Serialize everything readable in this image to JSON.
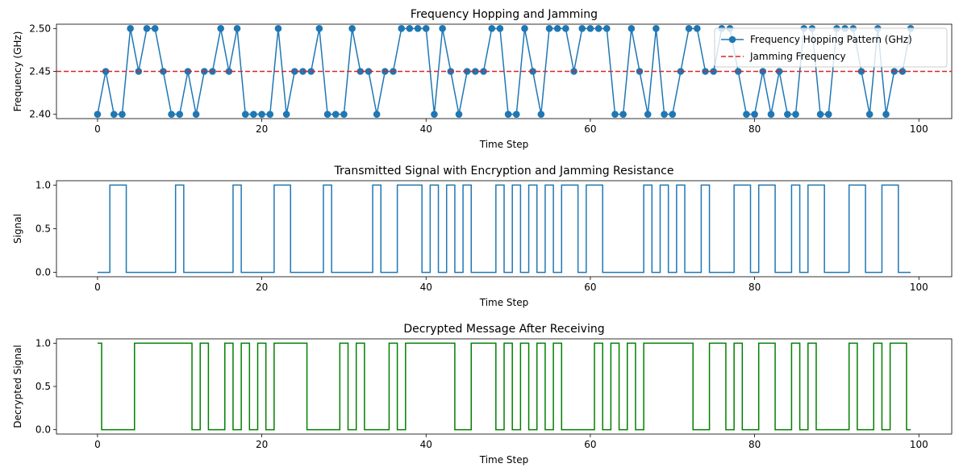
{
  "chart_data": [
    {
      "type": "line",
      "title": "Frequency Hopping and Jamming",
      "xlabel": "Time Step",
      "ylabel": "Frequency (GHz)",
      "xlim": [
        -5,
        104
      ],
      "ylim": [
        2.395,
        2.505
      ],
      "xticks": [
        0,
        20,
        40,
        60,
        80,
        100
      ],
      "yticks": [
        2.4,
        2.45,
        2.5
      ],
      "ytick_labels": [
        "2.40",
        "2.45",
        "2.50"
      ],
      "legend_position": "top-right",
      "series": [
        {
          "name": "Frequency Hopping Pattern (GHz)",
          "color": "#1f77b4",
          "marker": "circle",
          "x": [
            0,
            1,
            2,
            3,
            4,
            5,
            6,
            7,
            8,
            9,
            10,
            11,
            12,
            13,
            14,
            15,
            16,
            17,
            18,
            19,
            20,
            21,
            22,
            23,
            24,
            25,
            26,
            27,
            28,
            29,
            30,
            31,
            32,
            33,
            34,
            35,
            36,
            37,
            38,
            39,
            40,
            41,
            42,
            43,
            44,
            45,
            46,
            47,
            48,
            49,
            50,
            51,
            52,
            53,
            54,
            55,
            56,
            57,
            58,
            59,
            60,
            61,
            62,
            63,
            64,
            65,
            66,
            67,
            68,
            69,
            70,
            71,
            72,
            73,
            74,
            75,
            76,
            77,
            78,
            79,
            80,
            81,
            82,
            83,
            84,
            85,
            86,
            87,
            88,
            89,
            90,
            91,
            92,
            93,
            94,
            95,
            96,
            97,
            98,
            99
          ],
          "y": [
            2.4,
            2.45,
            2.4,
            2.4,
            2.5,
            2.45,
            2.5,
            2.5,
            2.45,
            2.4,
            2.4,
            2.45,
            2.4,
            2.45,
            2.45,
            2.5,
            2.45,
            2.5,
            2.4,
            2.4,
            2.4,
            2.4,
            2.5,
            2.4,
            2.45,
            2.45,
            2.45,
            2.5,
            2.4,
            2.4,
            2.4,
            2.5,
            2.45,
            2.45,
            2.4,
            2.45,
            2.45,
            2.5,
            2.5,
            2.5,
            2.5,
            2.4,
            2.5,
            2.45,
            2.4,
            2.45,
            2.45,
            2.45,
            2.5,
            2.5,
            2.4,
            2.4,
            2.5,
            2.45,
            2.4,
            2.5,
            2.5,
            2.5,
            2.45,
            2.5,
            2.5,
            2.5,
            2.5,
            2.4,
            2.4,
            2.5,
            2.45,
            2.4,
            2.5,
            2.4,
            2.4,
            2.45,
            2.5,
            2.5,
            2.45,
            2.45,
            2.5,
            2.5,
            2.45,
            2.4,
            2.4,
            2.45,
            2.4,
            2.45,
            2.4,
            2.4,
            2.5,
            2.5,
            2.4,
            2.4,
            2.5,
            2.5,
            2.5,
            2.45,
            2.4,
            2.5,
            2.4,
            2.45,
            2.45,
            2.5
          ]
        },
        {
          "name": "Jamming Frequency",
          "color": "#d62728",
          "style": "dashed",
          "hline": 2.45
        }
      ]
    },
    {
      "type": "line",
      "title": "Transmitted Signal with Encryption and Jamming Resistance",
      "xlabel": "Time Step",
      "ylabel": "Signal",
      "xlim": [
        -5,
        104
      ],
      "ylim": [
        -0.05,
        1.05
      ],
      "xticks": [
        0,
        20,
        40,
        60,
        80,
        100
      ],
      "yticks": [
        0,
        0.5,
        1.0
      ],
      "ytick_labels": [
        "0.0",
        "0.5",
        "1.0"
      ],
      "series": [
        {
          "color": "#1f77b4",
          "step": "mid",
          "x": [
            0,
            1,
            2,
            3,
            4,
            5,
            6,
            7,
            8,
            9,
            10,
            11,
            12,
            13,
            14,
            15,
            16,
            17,
            18,
            19,
            20,
            21,
            22,
            23,
            24,
            25,
            26,
            27,
            28,
            29,
            30,
            31,
            32,
            33,
            34,
            35,
            36,
            37,
            38,
            39,
            40,
            41,
            42,
            43,
            44,
            45,
            46,
            47,
            48,
            49,
            50,
            51,
            52,
            53,
            54,
            55,
            56,
            57,
            58,
            59,
            60,
            61,
            62,
            63,
            64,
            65,
            66,
            67,
            68,
            69,
            70,
            71,
            72,
            73,
            74,
            75,
            76,
            77,
            78,
            79,
            80,
            81,
            82,
            83,
            84,
            85,
            86,
            87,
            88,
            89,
            90,
            91,
            92,
            93,
            94,
            95,
            96,
            97,
            98,
            99
          ],
          "y": [
            0,
            0,
            1,
            1,
            0,
            0,
            0,
            0,
            0,
            0,
            1,
            0,
            0,
            0,
            0,
            0,
            0,
            1,
            0,
            0,
            0,
            0,
            1,
            1,
            0,
            0,
            0,
            0,
            1,
            0,
            0,
            0,
            0,
            0,
            1,
            0,
            0,
            1,
            1,
            1,
            0,
            1,
            0,
            1,
            0,
            1,
            0,
            0,
            0,
            1,
            0,
            1,
            0,
            1,
            0,
            1,
            0,
            1,
            1,
            0,
            1,
            1,
            0,
            0,
            0,
            0,
            0,
            1,
            0,
            1,
            0,
            1,
            0,
            0,
            1,
            0,
            0,
            0,
            1,
            1,
            0,
            1,
            1,
            0,
            0,
            1,
            0,
            1,
            1,
            0,
            0,
            0,
            1,
            1,
            0,
            0,
            1,
            1,
            0,
            0
          ]
        }
      ]
    },
    {
      "type": "line",
      "title": "Decrypted Message After Receiving",
      "xlabel": "Time Step",
      "ylabel": "Decrypted Signal",
      "xlim": [
        -5,
        104
      ],
      "ylim": [
        -0.05,
        1.05
      ],
      "xticks": [
        0,
        20,
        40,
        60,
        80,
        100
      ],
      "yticks": [
        0,
        0.5,
        1.0
      ],
      "ytick_labels": [
        "0.0",
        "0.5",
        "1.0"
      ],
      "series": [
        {
          "color": "#008000",
          "step": "mid",
          "x": [
            0,
            1,
            2,
            3,
            4,
            5,
            6,
            7,
            8,
            9,
            10,
            11,
            12,
            13,
            14,
            15,
            16,
            17,
            18,
            19,
            20,
            21,
            22,
            23,
            24,
            25,
            26,
            27,
            28,
            29,
            30,
            31,
            32,
            33,
            34,
            35,
            36,
            37,
            38,
            39,
            40,
            41,
            42,
            43,
            44,
            45,
            46,
            47,
            48,
            49,
            50,
            51,
            52,
            53,
            54,
            55,
            56,
            57,
            58,
            59,
            60,
            61,
            62,
            63,
            64,
            65,
            66,
            67,
            68,
            69,
            70,
            71,
            72,
            73,
            74,
            75,
            76,
            77,
            78,
            79,
            80,
            81,
            82,
            83,
            84,
            85,
            86,
            87,
            88,
            89,
            90,
            91,
            92,
            93,
            94,
            95,
            96,
            97,
            98,
            99
          ],
          "y": [
            1,
            0,
            0,
            0,
            0,
            1,
            1,
            1,
            1,
            1,
            1,
            1,
            0,
            1,
            0,
            0,
            1,
            0,
            1,
            0,
            1,
            0,
            1,
            1,
            1,
            1,
            0,
            0,
            0,
            0,
            1,
            0,
            1,
            0,
            0,
            0,
            1,
            0,
            1,
            1,
            1,
            1,
            1,
            1,
            0,
            0,
            1,
            1,
            1,
            0,
            1,
            0,
            1,
            0,
            1,
            0,
            1,
            0,
            0,
            0,
            0,
            1,
            0,
            1,
            0,
            1,
            0,
            1,
            1,
            1,
            1,
            1,
            1,
            0,
            0,
            1,
            1,
            0,
            1,
            0,
            0,
            1,
            1,
            0,
            0,
            1,
            0,
            1,
            0,
            0,
            0,
            0,
            1,
            0,
            0,
            1,
            0,
            1,
            1,
            0
          ]
        }
      ]
    }
  ]
}
